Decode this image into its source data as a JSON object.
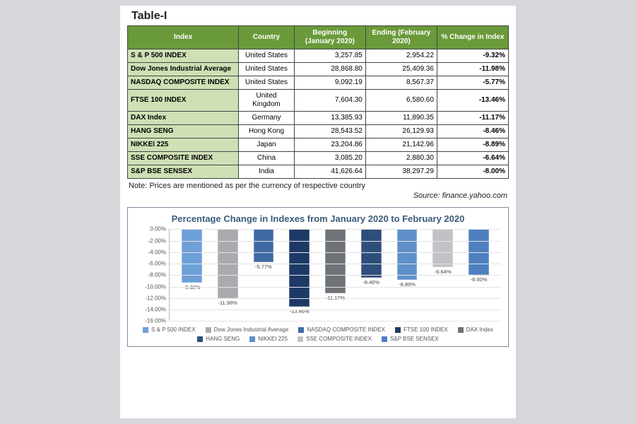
{
  "title": "Table-I",
  "table": {
    "headers": [
      "Index",
      "Country",
      "Beginning (January 2020)",
      "Ending (February 2020)",
      "% Change in Index"
    ],
    "header_bg": "#6a9a3a",
    "header_color": "#ffffff",
    "name_bg": "#cfe0b5",
    "border_color": "#444444",
    "rows": [
      {
        "name": "S & P 500 INDEX",
        "country": "United States",
        "begin": "3,257.85",
        "end": "2,954.22",
        "pct": "-9.32%"
      },
      {
        "name": "Dow Jones Industrial Average",
        "country": "United States",
        "begin": "28,868.80",
        "end": "25,409.36",
        "pct": "-11.98%"
      },
      {
        "name": "NASDAQ COMPOSITE INDEX",
        "country": "United States",
        "begin": "9,092.19",
        "end": "8,567.37",
        "pct": "-5.77%"
      },
      {
        "name": "FTSE 100 INDEX",
        "country": "United Kingdom",
        "begin": "7,604.30",
        "end": "6,580.60",
        "pct": "-13.46%"
      },
      {
        "name": "DAX Index",
        "country": "Germany",
        "begin": "13,385.93",
        "end": "11,890.35",
        "pct": "-11.17%"
      },
      {
        "name": "HANG SENG",
        "country": "Hong Kong",
        "begin": "28,543.52",
        "end": "26,129.93",
        "pct": "-8.46%"
      },
      {
        "name": "NIKKEI 225",
        "country": "Japan",
        "begin": "23,204.86",
        "end": "21,142.96",
        "pct": "-8.89%"
      },
      {
        "name": "SSE COMPOSITE INDEX",
        "country": "China",
        "begin": "3,085.20",
        "end": "2,880.30",
        "pct": "-6.64%"
      },
      {
        "name": "S&P BSE SENSEX",
        "country": "India",
        "begin": "41,626.64",
        "end": "38,297.29",
        "pct": "-8.00%"
      }
    ]
  },
  "note": "Note: Prices are mentioned as per the currency of respective country",
  "source": "Source: finance.yahoo.com",
  "chart": {
    "type": "bar",
    "title": "Percentage Change in Indexes from January 2020 to February 2020",
    "title_color": "#3a5b7a",
    "title_fontsize": 13,
    "background": "#ffffff",
    "border_color": "#7c8a99",
    "grid_color": "#e3e3e3",
    "ylim": [
      -16,
      0
    ],
    "ytick_step": 2,
    "yticks": [
      "0.00%",
      "-2.00%",
      "-4.00%",
      "-6.00%",
      "-8.00%",
      "-10.00%",
      "-12.00%",
      "-14.00%",
      "-16.00%"
    ],
    "label_fontsize": 8,
    "bar_width": 0.7,
    "series": [
      {
        "label": "S & P 500 INDEX",
        "value": -9.32,
        "value_label": "-9.32%",
        "color": "#6ea0d8"
      },
      {
        "label": "Dow Jones Industrial Average",
        "value": -11.98,
        "value_label": "-11.98%",
        "color": "#a9abae"
      },
      {
        "label": "NASDAQ COMPOSITE INDEX",
        "value": -5.77,
        "value_label": "-5.77%",
        "color": "#3e6aa3"
      },
      {
        "label": "FTSE 100 INDEX",
        "value": -13.46,
        "value_label": "-13.46%",
        "color": "#1d3a66"
      },
      {
        "label": "DAX Index",
        "value": -11.17,
        "value_label": "-11.17%",
        "color": "#6f7378"
      },
      {
        "label": "HANG SENG",
        "value": -8.46,
        "value_label": "-8.46%",
        "color": "#2e4f7c"
      },
      {
        "label": "NIKKEI 225",
        "value": -8.89,
        "value_label": "-8.89%",
        "color": "#5f90c9"
      },
      {
        "label": "SSE COMPOSITE INDEX",
        "value": -6.64,
        "value_label": "-6.64%",
        "color": "#c0c2c5"
      },
      {
        "label": "S&P BSE SENSEX",
        "value": -8.0,
        "value_label": "-8.00%",
        "color": "#4e7fbf"
      }
    ]
  }
}
